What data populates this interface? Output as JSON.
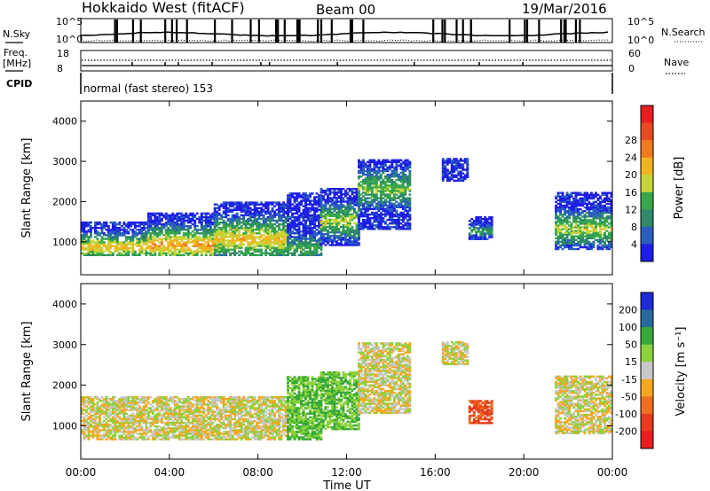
{
  "header": {
    "title": "Hokkaido West (fitACF)",
    "beam": "Beam 00",
    "date": "19/Mar/2016"
  },
  "top_panels": {
    "nsky_label": "N.Sky",
    "nsearch_label": "N.Search",
    "nsky_ticks": [
      "10^5",
      "10^0"
    ],
    "freq_label_1": "Freq.",
    "freq_label_2": "[MHz]",
    "freq_ticks": [
      "18",
      "8"
    ],
    "nave_label": "Nave",
    "nave_ticks": [
      "60",
      "0"
    ],
    "cpid_label": "CPID",
    "cpid_text": "normal (fast stereo) 153"
  },
  "chart_data": [
    {
      "type": "heatmap",
      "panel": "power",
      "xlabel": "Time UT",
      "ylabel": "Slant Range [km]",
      "xlim": [
        0,
        24
      ],
      "ylim": [
        180,
        4500
      ],
      "yticks": [
        1000,
        2000,
        3000,
        4000
      ],
      "colorbar": {
        "label": "Power [dB]",
        "ticks": [
          "4",
          "8",
          "12",
          "16",
          "20",
          "24",
          "28"
        ],
        "bins": [
          0,
          4,
          8,
          12,
          16,
          20,
          24,
          28,
          30
        ],
        "colors": [
          "#1e1ee6",
          "#2a5fbf",
          "#2e8a68",
          "#37a84a",
          "#c6d43a",
          "#f0b41e",
          "#f07a1e",
          "#e64a1e",
          "#e61e1e"
        ]
      },
      "echo_regions": [
        {
          "t0": 0.0,
          "t1": 3.0,
          "r0": 650,
          "r1": 1500,
          "peak_r": 850,
          "peak": 22
        },
        {
          "t0": 3.0,
          "t1": 6.0,
          "r0": 650,
          "r1": 1700,
          "peak_r": 900,
          "peak": 24
        },
        {
          "t0": 6.0,
          "t1": 9.3,
          "r0": 650,
          "r1": 2000,
          "peak_r": 1050,
          "peak": 22
        },
        {
          "t0": 9.3,
          "t1": 10.8,
          "r0": 650,
          "r1": 2200,
          "peak_r": 800,
          "peak": 14
        },
        {
          "t0": 10.8,
          "t1": 12.5,
          "r0": 900,
          "r1": 2300,
          "peak_r": 1500,
          "peak": 18
        },
        {
          "t0": 12.5,
          "t1": 14.8,
          "r0": 1300,
          "r1": 3050,
          "peak_r": 2300,
          "peak": 16
        },
        {
          "t0": 16.3,
          "t1": 17.5,
          "r0": 2500,
          "r1": 3050,
          "peak_r": 2700,
          "peak": 6
        },
        {
          "t0": 17.5,
          "t1": 18.6,
          "r0": 1050,
          "r1": 1600,
          "peak_r": 1250,
          "peak": 14
        },
        {
          "t0": 21.4,
          "t1": 24.0,
          "r0": 800,
          "r1": 2200,
          "peak_r": 1300,
          "peak": 18
        }
      ]
    },
    {
      "type": "heatmap",
      "panel": "velocity",
      "xlabel": "Time UT",
      "ylabel": "Slant Range [km]",
      "xlim": [
        0,
        24
      ],
      "ylim": [
        180,
        4500
      ],
      "yticks": [
        1000,
        2000,
        3000,
        4000
      ],
      "xticks": [
        "00:00",
        "04:00",
        "08:00",
        "12:00",
        "16:00",
        "20:00",
        "00:00"
      ],
      "colorbar": {
        "label": "Velocity [m s⁻¹]",
        "ticks": [
          "200",
          "100",
          "50",
          "15",
          "-15",
          "-50",
          "-100",
          "-200"
        ],
        "colors": [
          "#1e2ad2",
          "#2a6b9e",
          "#37a83a",
          "#8cd23c",
          "#c8c8c8",
          "#f5a81e",
          "#f06e1e",
          "#e63c1e",
          "#e61e1e"
        ]
      },
      "echo_regions": [
        {
          "t0": 0.0,
          "t1": 9.3,
          "r0": 650,
          "r1": 1700,
          "vel": 0
        },
        {
          "t0": 9.3,
          "t1": 10.8,
          "r0": 650,
          "r1": 2200,
          "vel": 30
        },
        {
          "t0": 10.8,
          "t1": 12.5,
          "r0": 900,
          "r1": 2300,
          "vel": 30
        },
        {
          "t0": 12.5,
          "t1": 14.8,
          "r0": 1300,
          "r1": 3050,
          "vel": 0
        },
        {
          "t0": 16.3,
          "t1": 17.5,
          "r0": 2500,
          "r1": 3050,
          "vel": 0
        },
        {
          "t0": 17.5,
          "t1": 18.6,
          "r0": 1050,
          "r1": 1600,
          "vel": -80
        },
        {
          "t0": 21.4,
          "t1": 24.0,
          "r0": 800,
          "r1": 2200,
          "vel": 0
        }
      ]
    }
  ]
}
